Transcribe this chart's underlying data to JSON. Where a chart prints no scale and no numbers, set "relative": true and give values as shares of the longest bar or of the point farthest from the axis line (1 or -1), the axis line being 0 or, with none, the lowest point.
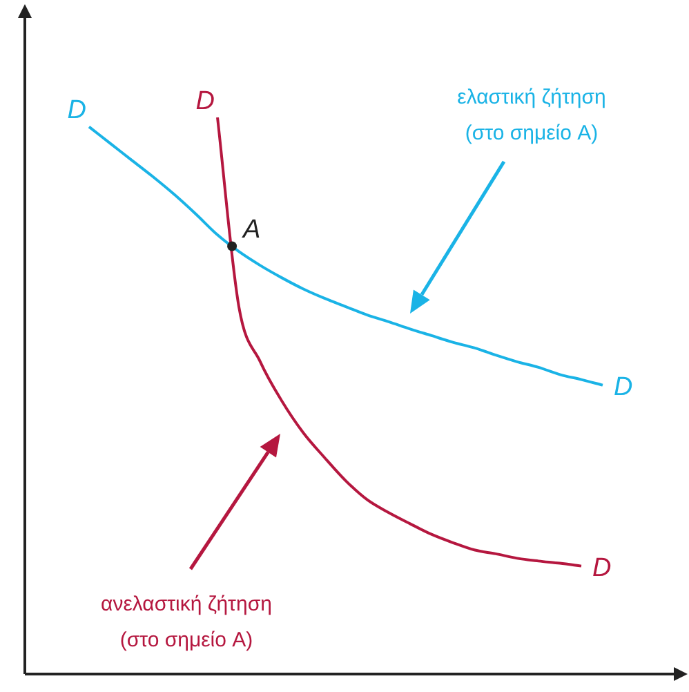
{
  "chart_data": {
    "type": "line",
    "relative": true,
    "tick_labels": false,
    "marker": "none",
    "legend": false,
    "categories": [
      null,
      null,
      null,
      null,
      null,
      null,
      null,
      null,
      null,
      null,
      null,
      null,
      null,
      null,
      null,
      null,
      null,
      null,
      null,
      null,
      null,
      null,
      null,
      null,
      null,
      null,
      null,
      null,
      null,
      null,
      null
    ],
    "series": [
      {
        "name": "D",
        "color": "#1ab3e6",
        "values": [
          null,
          null,
          null,
          0.983,
          0.953,
          0.923,
          0.893,
          0.861,
          0.826,
          0.789,
          0.759,
          0.734,
          0.712,
          0.692,
          0.675,
          0.66,
          0.645,
          0.633,
          0.62,
          0.608,
          0.596,
          0.586,
          0.573,
          0.561,
          0.551,
          0.538,
          0.529,
          0.519,
          null,
          null,
          null
        ]
      },
      {
        "name": "D",
        "color": "#b5173f",
        "values": [
          null,
          null,
          null,
          null,
          null,
          null,
          null,
          null,
          null,
          1.0,
          0.66,
          0.561,
          0.491,
          0.434,
          0.389,
          0.347,
          0.313,
          0.29,
          0.27,
          0.251,
          0.236,
          0.223,
          0.216,
          0.208,
          0.203,
          0.199,
          0.194,
          null,
          null,
          null,
          null
        ]
      }
    ],
    "annotations": [
      "A",
      "ελαστική ζήτηση (στο σημείο A)",
      "ανελαστική ζήτηση (στο σημείο A)"
    ]
  }
}
